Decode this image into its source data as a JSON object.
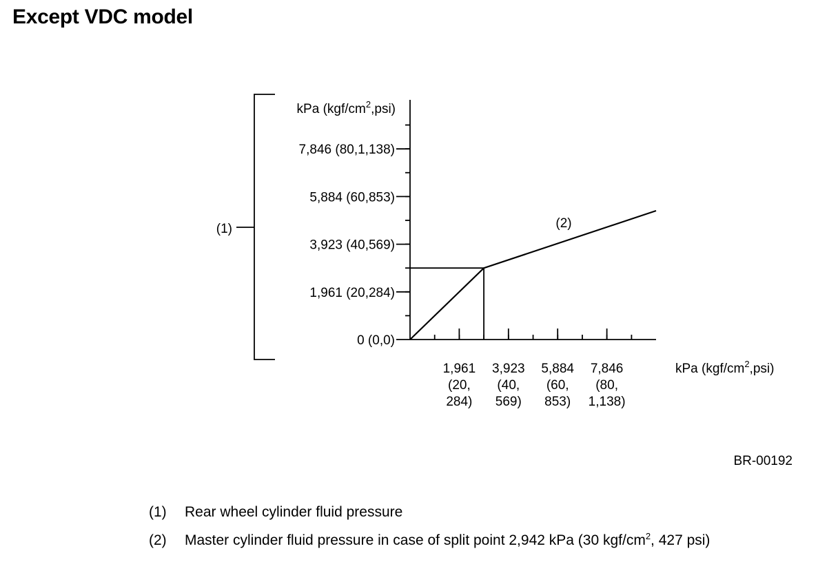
{
  "page_title": "Except VDC model",
  "figure_code": "BR-00192",
  "chart_data": {
    "type": "line",
    "title": "",
    "ylabel": {
      "pre": "kPa (kgf/cm",
      "sup": "2",
      "post": ",psi)"
    },
    "xlabel": {
      "pre": "kPa (kgf/cm",
      "sup": "2",
      "post": ",psi)"
    },
    "y_axis_callout": "(1)",
    "series_label": "(2)",
    "xlim": [
      0,
      9807
    ],
    "ylim": [
      0,
      9807
    ],
    "y_ticks": [
      {
        "value": 0,
        "label": "0 (0,0)"
      },
      {
        "value": 1961,
        "label": "1,961 (20,284)"
      },
      {
        "value": 3923,
        "label": "3,923 (40,569)"
      },
      {
        "value": 5884,
        "label": "5,884 (60,853)"
      },
      {
        "value": 7846,
        "label": "7,846 (80,1,138)"
      }
    ],
    "x_ticks": [
      {
        "value": 1961,
        "lines": [
          "1,961",
          "(20,",
          "284)"
        ]
      },
      {
        "value": 3923,
        "lines": [
          "3,923",
          "(40,",
          "569)"
        ]
      },
      {
        "value": 5884,
        "lines": [
          "5,884",
          "(60,",
          "853)"
        ]
      },
      {
        "value": 7846,
        "lines": [
          "7,846",
          "(80,",
          "1,138)"
        ]
      }
    ],
    "minor_tick_step": 981,
    "series": [
      {
        "x": [
          0,
          2942,
          9807
        ],
        "y": [
          0,
          2942,
          5300
        ]
      }
    ],
    "split_point": {
      "x": 2942,
      "y": 2942
    }
  },
  "legend": [
    {
      "num": "(1)",
      "text": "Rear wheel cylinder fluid pressure"
    },
    {
      "num": "(2)",
      "pre": "Master cylinder fluid pressure in case of split point 2,942 kPa (30 kgf/cm",
      "sup": "2",
      "post": ", 427 psi)"
    }
  ]
}
